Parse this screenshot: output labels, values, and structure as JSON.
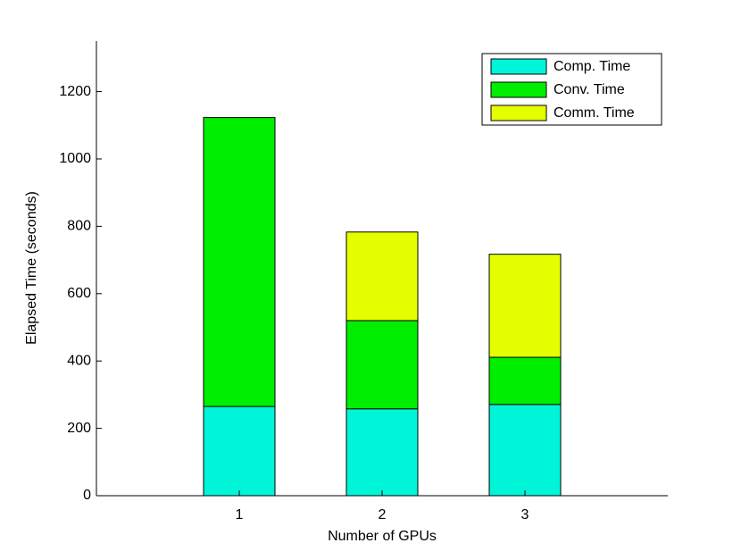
{
  "chart_data": {
    "type": "stacked-bar",
    "xlabel": "Number of GPUs",
    "ylabel": "Elapsed Time (seconds)",
    "x": [
      1,
      2,
      3
    ],
    "xlim": [
      0,
      4
    ],
    "xticks": [
      1,
      2,
      3
    ],
    "ylim": [
      0,
      1350
    ],
    "yticks": [
      0,
      200,
      400,
      600,
      800,
      1000,
      1200
    ],
    "grid": false,
    "legend": "upper-right",
    "series": [
      {
        "name": "Comp. Time",
        "color": "#00f5d8",
        "values": [
          265,
          258,
          271
        ]
      },
      {
        "name": "Conv. Time",
        "color": "#00ee00",
        "values": [
          858,
          262,
          140
        ]
      },
      {
        "name": "Comm. Time",
        "color": "#e5ff00",
        "values": [
          0,
          263,
          306
        ]
      }
    ]
  }
}
